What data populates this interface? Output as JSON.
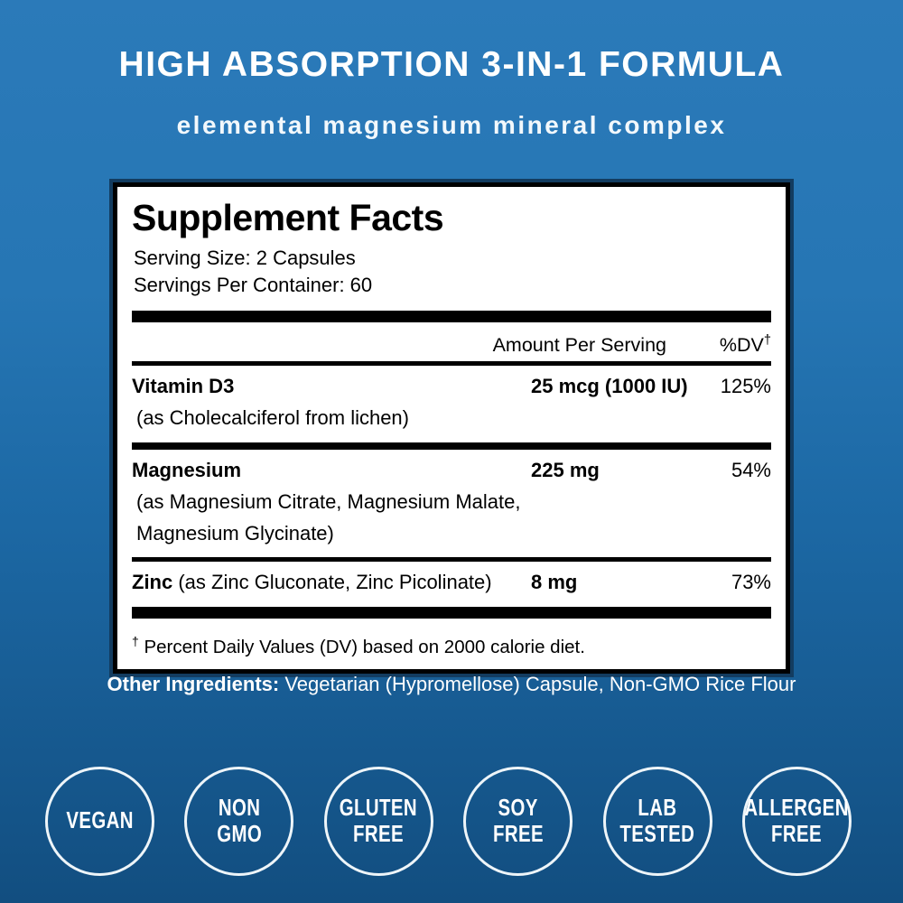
{
  "header": {
    "title": "HIGH ABSORPTION 3-IN-1 FORMULA",
    "subtitle": "elemental magnesium mineral complex"
  },
  "facts": {
    "title": "Supplement Facts",
    "serving_size": "Serving Size: 2 Capsules",
    "servings_per_container": "Servings Per Container: 60",
    "columns": {
      "amount": "Amount Per Serving",
      "dv": "%DV",
      "dv_sup": "†"
    },
    "rows": [
      {
        "name": "Vitamin D3",
        "note": "(as Cholecalciferol from lichen)",
        "amount": "25 mcg (1000 IU)",
        "dv": "125%"
      },
      {
        "name": "Magnesium",
        "note": "(as Magnesium Citrate, Magnesium Malate,",
        "note2": "Magnesium Glycinate)",
        "amount": "225 mg",
        "dv": "54%"
      },
      {
        "name": "Zinc",
        "name_note": " (as Zinc Gluconate, Zinc Picolinate)",
        "amount": "8 mg",
        "dv": "73%"
      }
    ],
    "footnote_sup": "†",
    "footnote_text": " Percent Daily Values (DV) based on 2000 calorie diet."
  },
  "other_ingredients": {
    "label": "Other Ingredients:",
    "value": " Vegetarian (Hypromellose) Capsule, Non-GMO Rice Flour"
  },
  "badges": [
    {
      "lines": [
        "VEGAN"
      ]
    },
    {
      "lines": [
        "NON",
        "GMO"
      ]
    },
    {
      "lines": [
        "GLUTEN",
        "FREE"
      ]
    },
    {
      "lines": [
        "SOY",
        "FREE"
      ]
    },
    {
      "lines": [
        "LAB",
        "TESTED"
      ]
    },
    {
      "lines": [
        "ALLERGEN",
        "FREE"
      ]
    }
  ],
  "colors": {
    "background_top": "#2b7ab9",
    "background_bottom": "#124e80",
    "panel_background": "#ffffff",
    "panel_border": "#000000",
    "panel_outline": "#133c60",
    "text_light": "#ffffff",
    "text_dark": "#000000",
    "badge_ring": "#eef5f9"
  }
}
